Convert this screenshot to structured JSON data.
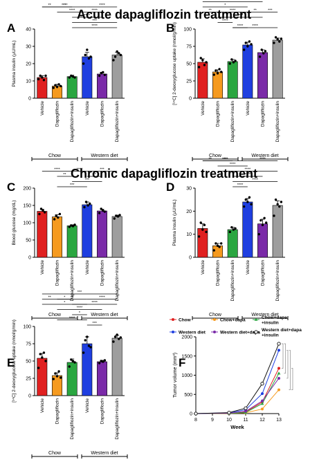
{
  "headings": {
    "acute": "Acute dapagliflozin treatment",
    "chronic": "Chronic dapagliflozin treatment"
  },
  "colors": {
    "vehicle_chow": "#e02020",
    "dapa_chow": "#f59a1f",
    "dapa_insulin_chow": "#2aa640",
    "vehicle_wd": "#1f3fe0",
    "dapa_wd": "#7a2aa8",
    "dapa_insulin_wd": "#9e9e9e"
  },
  "groups": {
    "chow": "Chow",
    "western": "Western diet"
  },
  "chart_data": [
    {
      "panel": "A",
      "type": "bar",
      "ylabel": "Plasma insulin (µU/mL)",
      "ylim": [
        0,
        40
      ],
      "yticks": [
        0,
        10,
        20,
        30,
        40
      ],
      "categories": [
        "Vehicle",
        "Dapagliflozin",
        "Dapagliflozin+insulin",
        "Vehicle",
        "Dapagliflozin",
        "Dapagliflozin+insulin"
      ],
      "values": [
        12,
        7,
        12.5,
        24,
        14,
        25
      ],
      "errors": [
        1,
        1,
        0.8,
        2.5,
        1,
        1.5
      ],
      "points": [
        [
          11,
          13,
          12,
          10.5,
          13
        ],
        [
          6,
          7.5,
          6.5,
          8,
          7
        ],
        [
          12,
          13,
          12.5,
          12
        ],
        [
          20,
          25,
          28,
          23,
          24
        ],
        [
          13,
          14.5,
          15,
          13.5
        ],
        [
          22,
          24,
          27,
          26,
          25
        ]
      ],
      "sig": [
        [
          "**",
          0,
          1,
          4
        ],
        [
          "**",
          1,
          2,
          4
        ],
        [
          "****",
          0,
          3,
          4
        ],
        [
          "****",
          3,
          5,
          4
        ],
        [
          "****",
          1,
          3,
          3
        ],
        [
          "****",
          3,
          4,
          3
        ],
        [
          "****",
          2,
          4,
          2
        ],
        [
          "***",
          2,
          5,
          1
        ],
        [
          "****",
          2,
          5,
          0
        ]
      ]
    },
    {
      "panel": "B",
      "type": "bar",
      "ylabel": "[¹⁴C] 2-deoxyglucose uptake (nmol/g/min)",
      "ylim": [
        0,
        100
      ],
      "yticks": [
        0,
        25,
        50,
        75,
        100
      ],
      "categories": [
        "Vehicle",
        "Dapagliflozin",
        "Dapagliflozin+insulin",
        "Vehicle",
        "Dapagliflozin",
        "Dapagliflozin+insulin"
      ],
      "values": [
        52,
        38,
        53,
        77,
        66,
        84
      ],
      "errors": [
        5,
        3,
        3,
        4,
        4,
        3
      ],
      "points": [
        [
          45,
          58,
          55,
          48,
          52
        ],
        [
          34,
          40,
          36,
          42,
          38
        ],
        [
          50,
          56,
          52,
          54
        ],
        [
          70,
          80,
          75,
          82,
          78
        ],
        [
          60,
          70,
          65,
          68
        ],
        [
          80,
          88,
          85,
          82,
          86
        ]
      ],
      "sig": [
        [
          "****",
          0,
          5,
          6
        ],
        [
          "****",
          0,
          4,
          5
        ],
        [
          "*",
          0,
          3,
          4
        ],
        [
          "**",
          0,
          1,
          3
        ],
        [
          "****",
          1,
          3,
          3
        ],
        [
          "**",
          3,
          4,
          3
        ],
        [
          "***",
          4,
          5,
          3
        ],
        [
          "****",
          1,
          4,
          2
        ],
        [
          "****",
          1,
          2,
          1
        ],
        [
          "****",
          2,
          3,
          0
        ],
        [
          "****",
          2,
          5,
          0
        ]
      ]
    },
    {
      "panel": "C",
      "type": "bar",
      "ylabel": "Blood glucose (mg/dL)",
      "ylim": [
        0,
        200
      ],
      "yticks": [
        0,
        50,
        100,
        150,
        200
      ],
      "categories": [
        "Vehicle",
        "Dapagliflozin",
        "Dapagliflozin+insulin",
        "Vehicle",
        "Dapagliflozin",
        "Dapagliflozin+insulin"
      ],
      "values": [
        133,
        117,
        91,
        152,
        134,
        118
      ],
      "errors": [
        6,
        6,
        3,
        8,
        5,
        4
      ],
      "points": [
        [
          125,
          140,
          135,
          130
        ],
        [
          110,
          120,
          115,
          125
        ],
        [
          88,
          92,
          90,
          94
        ],
        [
          145,
          160,
          150,
          155
        ],
        [
          128,
          140,
          135,
          132
        ],
        [
          112,
          120,
          118,
          122
        ]
      ],
      "sig": [
        [
          "****",
          0,
          2,
          3
        ],
        [
          "**",
          1,
          2,
          2
        ],
        [
          "****",
          2,
          3,
          3
        ],
        [
          "***",
          3,
          5,
          3
        ],
        [
          "**",
          3,
          4,
          2
        ],
        [
          "***",
          2,
          4,
          1
        ],
        [
          "***",
          1,
          3,
          0
        ]
      ]
    },
    {
      "panel": "D",
      "type": "bar",
      "ylabel": "Plasma insulin (µU/mL)",
      "ylim": [
        0,
        30
      ],
      "yticks": [
        0,
        10,
        20,
        30
      ],
      "categories": [
        "Vehicle",
        "Dapagliflozin",
        "Dapagliflozin+insulin",
        "Vehicle",
        "Dapagliflozin",
        "Dapagliflozin+insulin"
      ],
      "values": [
        12.5,
        5,
        12,
        24,
        14.5,
        22.5
      ],
      "errors": [
        2,
        1,
        1,
        1.5,
        2,
        2
      ],
      "points": [
        [
          9,
          15,
          12,
          14,
          11
        ],
        [
          3,
          6,
          5,
          4.5,
          6
        ],
        [
          11,
          13,
          12,
          12.5
        ],
        [
          22,
          25,
          24,
          26,
          23
        ],
        [
          10,
          16,
          14,
          17,
          15
        ],
        [
          18,
          25,
          23,
          22,
          24
        ]
      ],
      "sig": [
        [
          "**",
          0,
          1,
          5
        ],
        [
          "**",
          1,
          2,
          5
        ],
        [
          "****",
          0,
          3,
          5
        ],
        [
          "****",
          3,
          5,
          5
        ],
        [
          "****",
          1,
          3,
          4
        ],
        [
          "****",
          1,
          5,
          3
        ],
        [
          "****",
          2,
          4,
          2
        ],
        [
          "****",
          2,
          5,
          1
        ],
        [
          "****",
          2,
          3,
          0
        ]
      ]
    },
    {
      "panel": "E",
      "type": "bar",
      "ylabel": "[¹⁴C] 2-deoxyglucose uptake (nmol/g/min)",
      "ylim": [
        0,
        100
      ],
      "yticks": [
        0,
        25,
        50,
        75,
        100
      ],
      "categories": [
        "Vehicle",
        "Dapagliflozin",
        "Dapagliflozin+insulin",
        "Vehicle",
        "Dapagliflozin",
        "Dapagliflozin+insulin"
      ],
      "values": [
        54,
        29,
        48,
        75,
        49,
        83
      ],
      "errors": [
        7,
        4,
        5,
        10,
        2,
        4
      ],
      "points": [
        [
          40,
          60,
          55,
          62,
          50
        ],
        [
          24,
          32,
          28,
          35,
          26
        ],
        [
          42,
          52,
          50,
          48
        ],
        [
          62,
          80,
          85,
          72,
          70
        ],
        [
          47,
          50,
          49,
          51
        ],
        [
          78,
          85,
          88,
          82,
          84
        ]
      ],
      "sig": [
        [
          "***",
          0,
          5,
          6
        ],
        [
          "**",
          0,
          1,
          5
        ],
        [
          "*",
          1,
          2,
          5
        ],
        [
          "**",
          1,
          3,
          5
        ],
        [
          "****",
          3,
          5,
          5
        ],
        [
          "*",
          0,
          3,
          4
        ],
        [
          "****",
          2,
          5,
          4
        ],
        [
          "****",
          1,
          4,
          3
        ],
        [
          "*",
          2,
          3,
          2
        ],
        [
          "****",
          1,
          3,
          1
        ],
        [
          "***",
          3,
          4,
          0
        ]
      ]
    },
    {
      "panel": "F",
      "type": "line",
      "xlabel": "Week",
      "ylabel": "Tumor volume (mm³)",
      "xticks": [
        8,
        9,
        10,
        11,
        12,
        13
      ],
      "yticks": [
        0,
        500,
        1000,
        1500,
        2000
      ],
      "xlim": [
        8,
        13
      ],
      "ylim": [
        0,
        2000
      ],
      "series": [
        {
          "name": "Chow",
          "color": "#e02020",
          "marker": "circle",
          "x": [
            8,
            10,
            11,
            12,
            13
          ],
          "y": [
            0,
            10,
            40,
            300,
            1180
          ]
        },
        {
          "name": "Chow+dapa",
          "color": "#f59a1f",
          "marker": "circle",
          "x": [
            8,
            10,
            11,
            12,
            13
          ],
          "y": [
            0,
            5,
            20,
            120,
            620
          ]
        },
        {
          "name": "Chow+dapa +insulin",
          "color": "#2aa640",
          "marker": "triangle",
          "x": [
            8,
            10,
            11,
            12,
            13
          ],
          "y": [
            0,
            8,
            30,
            260,
            1050
          ]
        },
        {
          "name": "Western diet",
          "color": "#1f3fe0",
          "marker": "circle",
          "x": [
            8,
            10,
            11,
            12,
            13
          ],
          "y": [
            0,
            20,
            100,
            520,
            1650
          ]
        },
        {
          "name": "Western diet+dapa",
          "color": "#7a2aa8",
          "marker": "circle",
          "x": [
            8,
            10,
            11,
            12,
            13
          ],
          "y": [
            0,
            12,
            60,
            330,
            920
          ]
        },
        {
          "name": "Western diet+dapa +insulin",
          "color": "#111111",
          "marker": "open-circle",
          "x": [
            8,
            10,
            11,
            12,
            13
          ],
          "y": [
            0,
            25,
            140,
            780,
            1820
          ]
        }
      ]
    }
  ]
}
